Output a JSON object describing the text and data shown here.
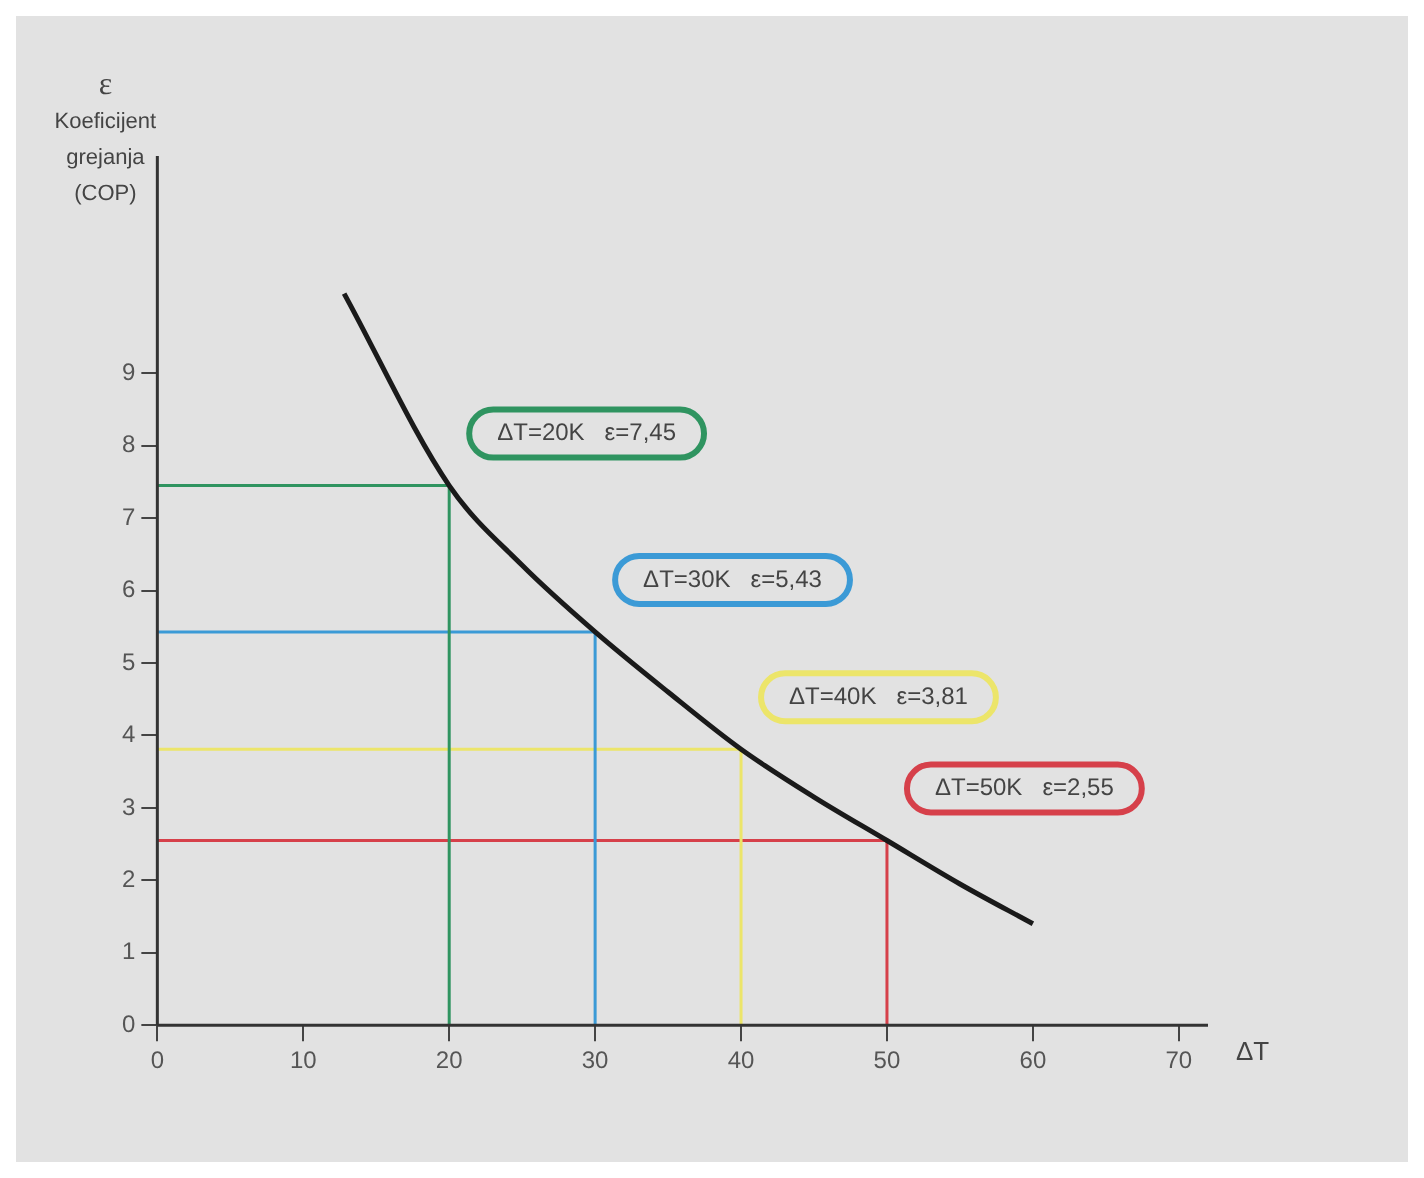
{
  "chart_data": {
    "type": "line",
    "ylabel": "ε\nKoeficijent\ngrejanja\n(COP)",
    "xlabel": "ΔT",
    "x": [
      12.8,
      20,
      25,
      30,
      35,
      40,
      45,
      50,
      55,
      60
    ],
    "series": [
      {
        "color": "#1a1a1a",
        "values": [
          10.1,
          7.45,
          6.35,
          5.43,
          4.6,
          3.81,
          3.15,
          2.55,
          1.95,
          1.4
        ]
      },
      {
        "color": "#2f9460",
        "x": [
          0,
          20,
          20
        ],
        "values": [
          7.45,
          7.45,
          0
        ]
      },
      {
        "color": "#3b9ad6",
        "x": [
          0,
          30,
          30
        ],
        "values": [
          5.43,
          5.43,
          0
        ]
      },
      {
        "color": "#ece56a",
        "x": [
          0,
          40,
          40
        ],
        "values": [
          3.81,
          3.81,
          0
        ]
      },
      {
        "color": "#d6404a",
        "x": [
          0,
          50,
          50
        ],
        "values": [
          2.55,
          2.55,
          0
        ]
      }
    ],
    "annotations": [
      {
        "text": "ΔT=20K   ε=7,45",
        "x": 20,
        "y": 7.45
      },
      {
        "text": "ΔT=30K   ε=5,43",
        "x": 30,
        "y": 5.43
      },
      {
        "text": "ΔT=40K   ε=3,81",
        "x": 40,
        "y": 3.81
      },
      {
        "text": "ΔT=50K   ε=2,55",
        "x": 50,
        "y": 2.55
      }
    ],
    "xlim": [
      0,
      72
    ],
    "xticks": [
      0,
      10,
      20,
      30,
      40,
      50,
      60,
      70
    ],
    "ylim": [
      0,
      12
    ],
    "yticks": [
      0,
      1,
      2,
      3,
      4,
      5,
      6,
      7,
      8,
      9
    ],
    "grid": false,
    "legend": false,
    "marker": "none",
    "line_style": "solid"
  }
}
